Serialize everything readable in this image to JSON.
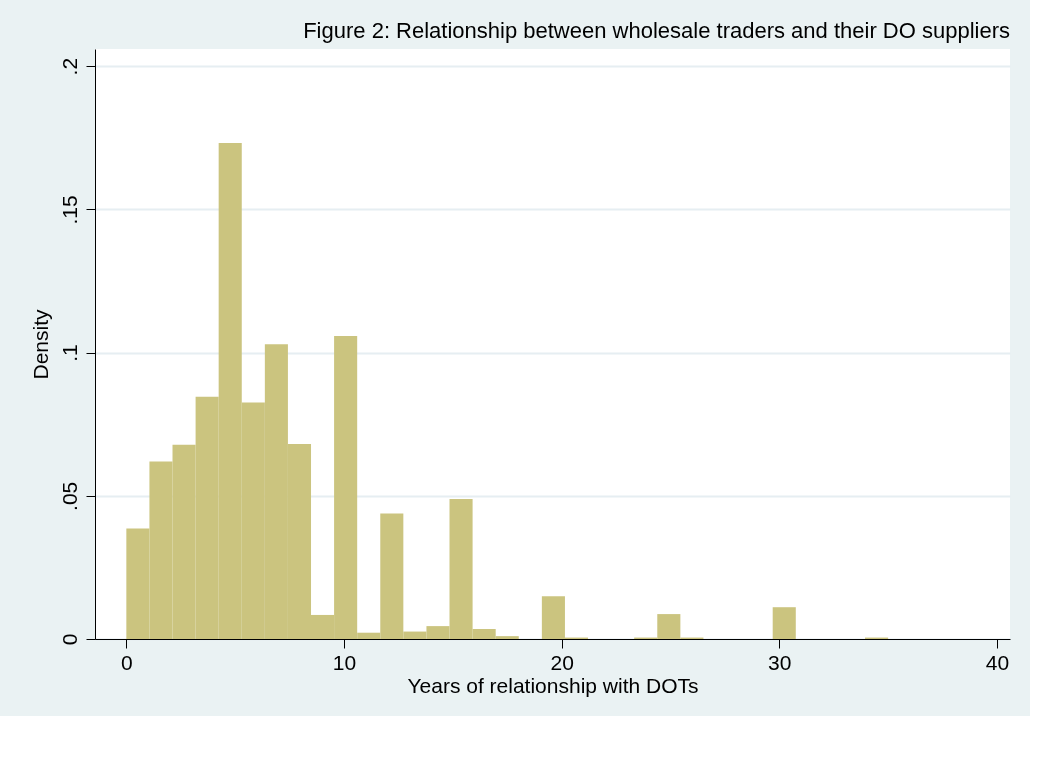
{
  "chart_data": {
    "type": "histogram",
    "title": "Figure 2: Relationship between wholesale traders and their DO suppliers",
    "xlabel": "Years of relationship with DOTs",
    "ylabel": "Density",
    "bins": [
      0,
      1.061,
      2.121,
      3.182,
      4.242,
      5.303,
      6.364,
      7.424,
      8.485,
      9.545,
      10.606,
      11.667,
      12.727,
      13.788,
      14.848,
      15.909,
      16.97,
      18.03,
      19.091,
      20.152,
      21.212,
      22.273,
      23.333,
      24.394,
      25.455,
      26.515,
      27.576,
      28.636,
      29.697,
      30.758,
      31.818,
      32.879,
      33.939,
      35
    ],
    "values": [
      0.0386,
      0.062,
      0.0678,
      0.0846,
      0.1732,
      0.0826,
      0.1029,
      0.0681,
      0.0084,
      0.1058,
      0.0022,
      0.0438,
      0.0026,
      0.0045,
      0.0489,
      0.0035,
      0.001,
      0,
      0.0149,
      0.0005,
      0,
      0,
      0.0005,
      0.0087,
      0.0005,
      0,
      0,
      0,
      0.0111,
      0,
      0,
      0,
      0.0005
    ],
    "color": "#cbc47f",
    "xlim": [
      -1.44,
      40.6
    ],
    "xticks": [
      0,
      10,
      20,
      30,
      40
    ],
    "ylim": [
      0,
      0.206
    ],
    "yticks": [
      0,
      {
        "value": 0.05,
        "label": ".05"
      },
      {
        "value": 0.1,
        "label": ".1"
      },
      {
        "value": 0.15,
        "label": ".15"
      },
      {
        "value": 0.2,
        "label": ".2"
      }
    ],
    "grid": "y"
  }
}
